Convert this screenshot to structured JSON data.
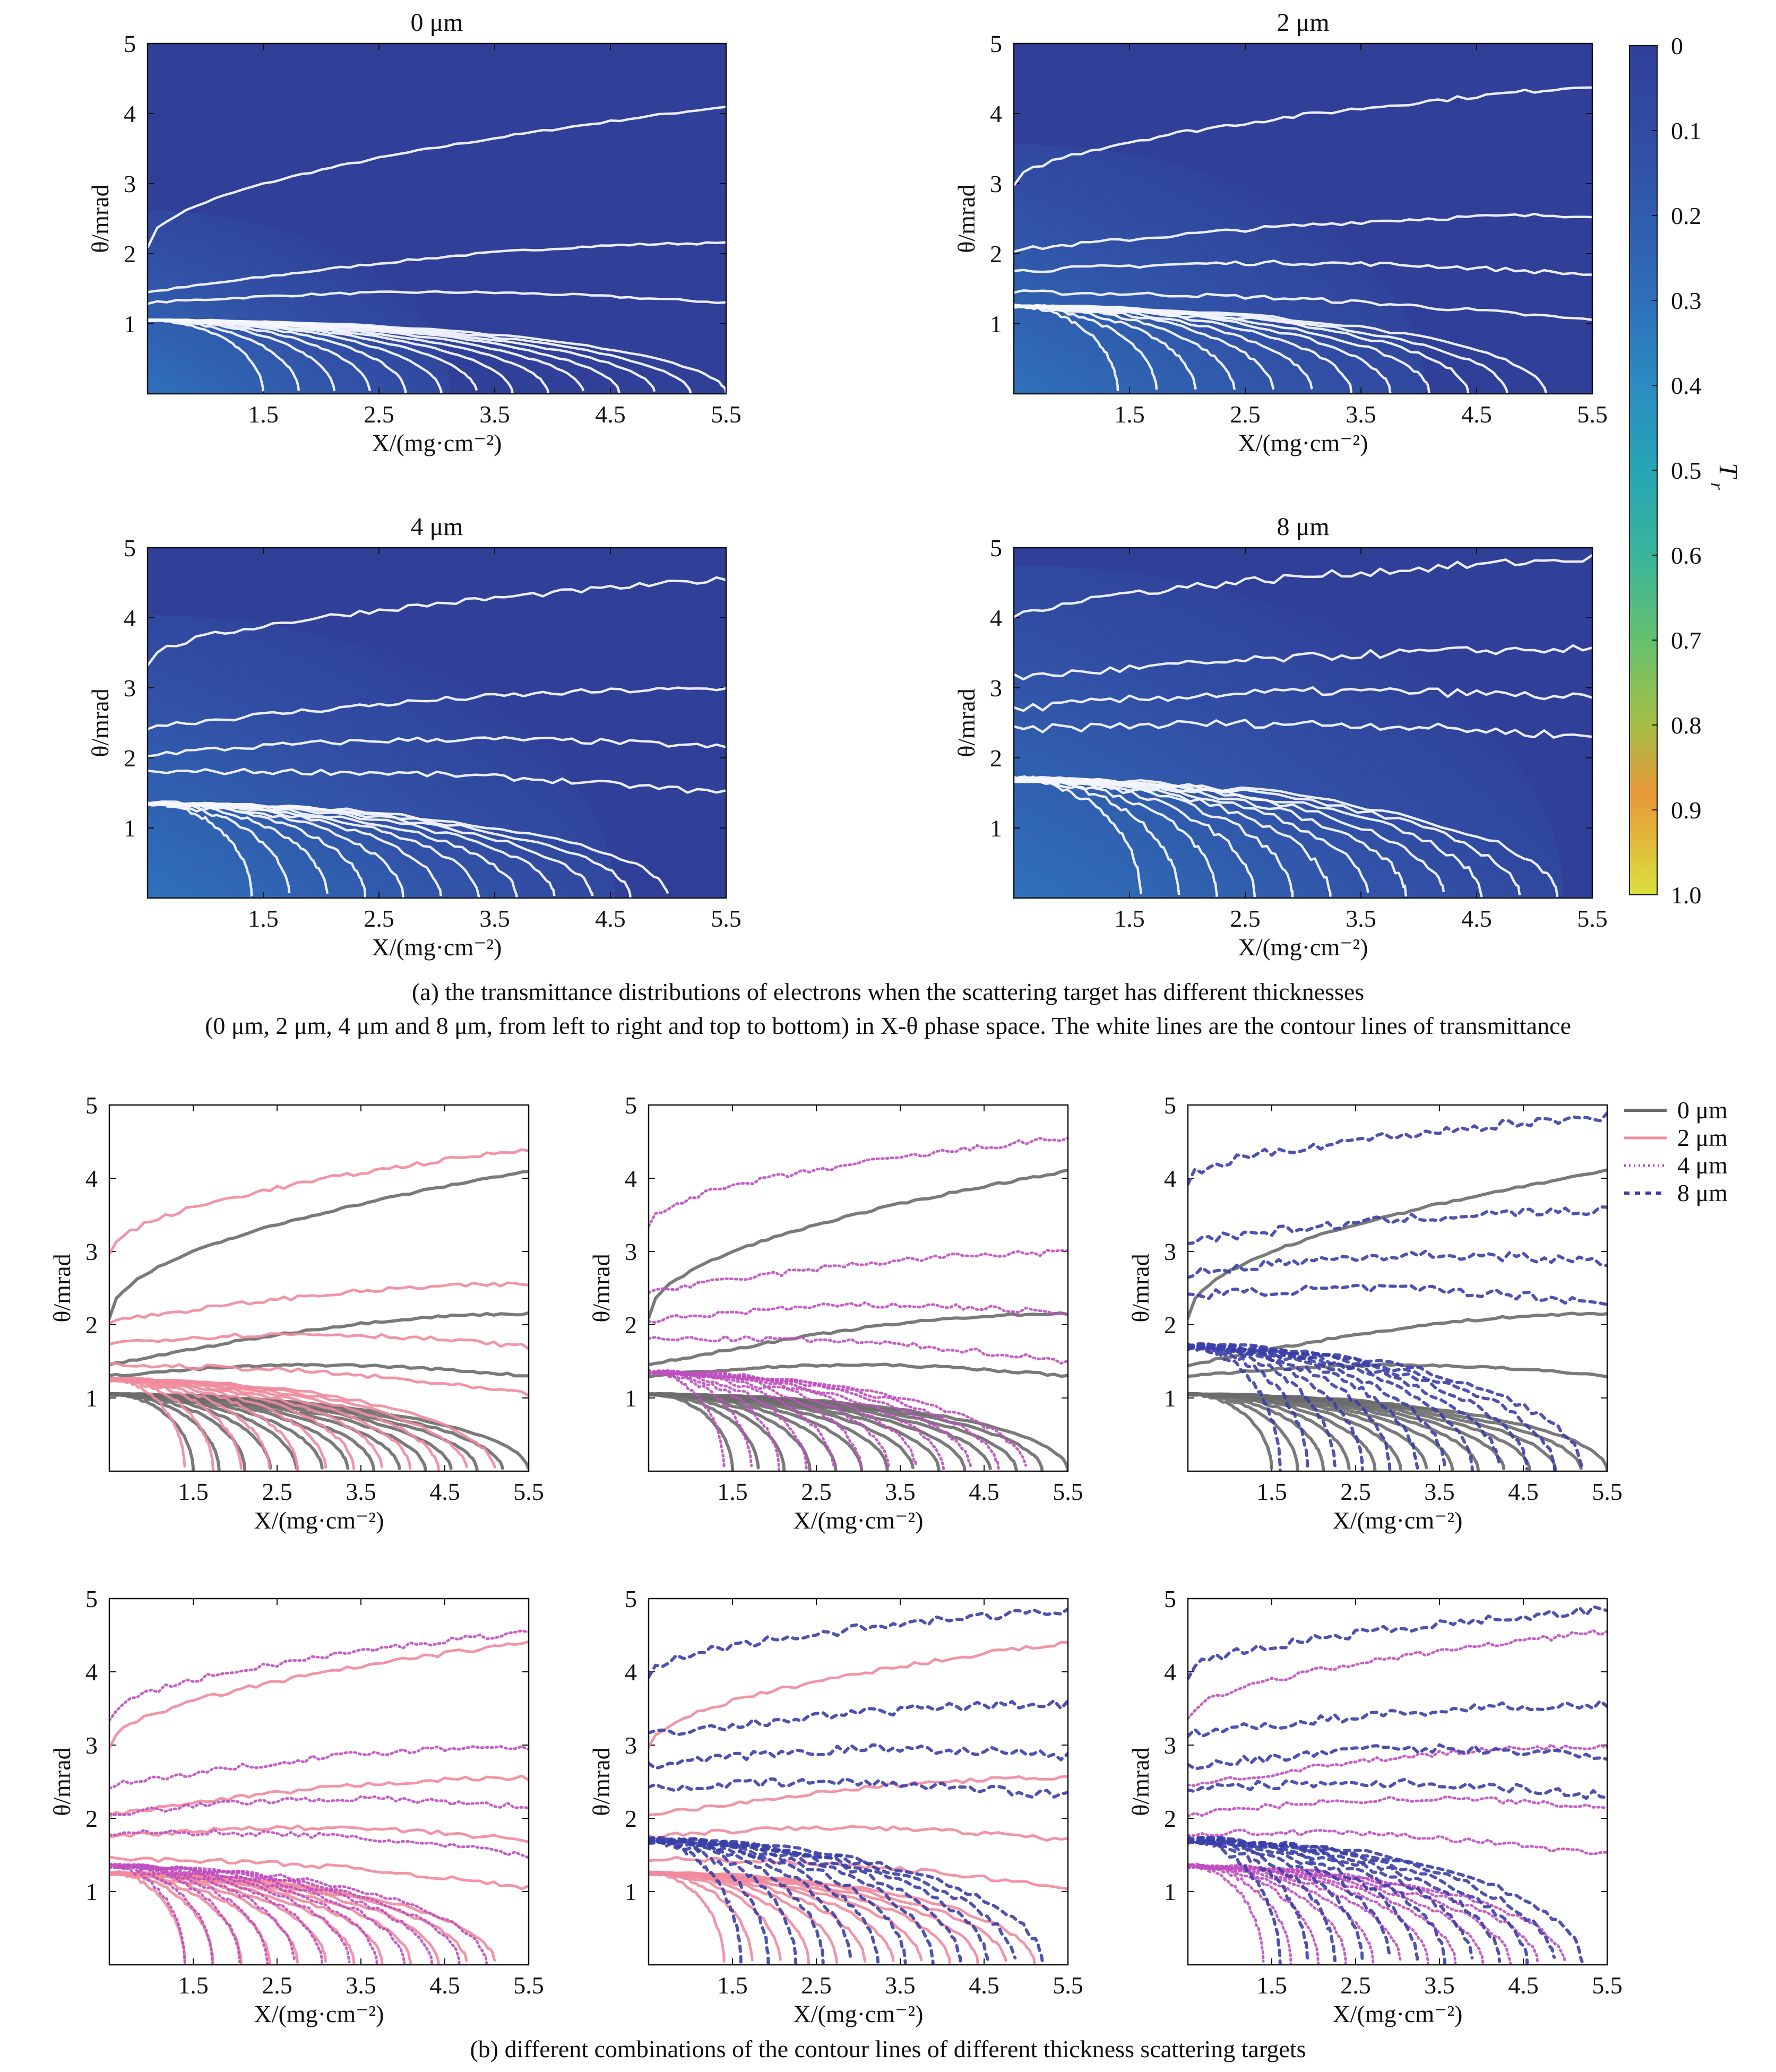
{
  "figure": {
    "caption_a_line1": "(a) the transmittance distributions of electrons when the scattering target has different thicknesses",
    "caption_a_line2": "(0 μm, 2 μm, 4 μm and 8 μm, from left to right and top to bottom) in X-θ phase space. The white lines are the contour lines of transmittance",
    "caption_b": "(b) different combinations of the contour lines of different thickness scattering targets"
  },
  "axes_text": {
    "xlabel": "X/(mg·cm⁻²)",
    "ylabel": "θ/mrad",
    "xticks": [
      "1.5",
      "2.5",
      "3.5",
      "4.5",
      "5.5"
    ],
    "yticks": [
      "1",
      "2",
      "3",
      "4",
      "5"
    ]
  },
  "colorbar": {
    "label": "Tr",
    "ticks": [
      "0",
      "0.1",
      "0.2",
      "0.3",
      "0.4",
      "0.5",
      "0.6",
      "0.7",
      "0.8",
      "0.9",
      "1.0"
    ],
    "colors": [
      "#303f97",
      "#3153a8",
      "#2f6fb9",
      "#2a8cc0",
      "#27a5b5",
      "#39b59b",
      "#66c06f",
      "#a5bf45",
      "#d3a43a",
      "#e8983a",
      "#d9e03c"
    ]
  },
  "series_colors": {
    "0 μm": "#6b6b6b",
    "2 μm": "#f08a9c",
    "4 μm": "#c04fc0",
    "8 μm": "#3b3fa8"
  },
  "chart_data": [
    {
      "type": "heatmap",
      "title": "0 μm",
      "xlabel": "X/(mg·cm⁻²)",
      "ylabel": "θ/mrad",
      "xlim": [
        0.5,
        5.5
      ],
      "ylim": [
        0,
        5
      ],
      "contour_levels": [
        0.05,
        0.15,
        0.2,
        0.25,
        0.3,
        0.35,
        0.4,
        0.45,
        0.5,
        0.55,
        0.6,
        0.65,
        0.7,
        0.75,
        0.8,
        0.85,
        0.9
      ],
      "contours_theta_at_x": {
        "x": [
          0.5,
          1.5,
          2.5,
          3.5,
          4.5,
          5.5
        ],
        "levels": [
          [
            2.1,
            2.7,
            3.1,
            3.5,
            3.8,
            4.1
          ],
          [
            1.45,
            1.75,
            1.95,
            2.05,
            2.12,
            2.15
          ],
          [
            1.3,
            1.45,
            1.45,
            1.42,
            1.38,
            1.3
          ]
        ]
      }
    },
    {
      "type": "heatmap",
      "title": "2 μm",
      "xlabel": "X/(mg·cm⁻²)",
      "ylabel": "θ/mrad",
      "xlim": [
        0.5,
        5.5
      ],
      "ylim": [
        0,
        5
      ],
      "contours_theta_at_x": {
        "x": [
          0.5,
          1.5,
          2.5,
          3.5,
          4.5,
          5.5
        ],
        "levels": [
          [
            2.95,
            3.35,
            3.7,
            3.95,
            4.2,
            4.4
          ],
          [
            2.05,
            2.25,
            2.38,
            2.45,
            2.52,
            2.55
          ],
          [
            1.75,
            1.85,
            1.85,
            1.82,
            1.78,
            1.7
          ]
        ]
      }
    },
    {
      "type": "heatmap",
      "title": "4 μm",
      "xlabel": "X/(mg·cm⁻²)",
      "ylabel": "θ/mrad",
      "xlim": [
        0.5,
        5.5
      ],
      "ylim": [
        0,
        5
      ],
      "contours_theta_at_x": {
        "x": [
          0.5,
          1.5,
          2.5,
          3.5,
          4.5,
          5.5
        ],
        "levels": [
          [
            3.35,
            3.7,
            3.95,
            4.15,
            4.35,
            4.55
          ],
          [
            2.45,
            2.65,
            2.75,
            2.85,
            2.92,
            2.98
          ],
          [
            2.05,
            2.15,
            2.18,
            2.18,
            2.17,
            2.15
          ]
        ]
      }
    },
    {
      "type": "heatmap",
      "title": "8 μm",
      "xlabel": "X/(mg·cm⁻²)",
      "ylabel": "θ/mrad",
      "xlim": [
        0.5,
        5.5
      ],
      "ylim": [
        0,
        5
      ],
      "contours_theta_at_x": {
        "x": [
          0.5,
          1.5,
          2.5,
          3.5,
          4.5,
          5.5
        ],
        "levels": [
          [
            3.95,
            4.25,
            4.45,
            4.6,
            4.75,
            4.85
          ],
          [
            3.15,
            3.3,
            3.4,
            3.45,
            3.52,
            3.55
          ],
          [
            2.7,
            2.8,
            2.82,
            2.83,
            2.83,
            2.85
          ]
        ]
      }
    },
    {
      "type": "line",
      "title": "",
      "series": [
        {
          "name": "0 μm"
        },
        {
          "name": "2 μm"
        }
      ],
      "xlim": [
        0.5,
        5.5
      ],
      "ylim": [
        0,
        5
      ]
    },
    {
      "type": "line",
      "title": "",
      "series": [
        {
          "name": "0 μm"
        },
        {
          "name": "4 μm"
        }
      ],
      "xlim": [
        0.5,
        5.5
      ],
      "ylim": [
        0,
        5
      ]
    },
    {
      "type": "line",
      "title": "",
      "series": [
        {
          "name": "0 μm"
        },
        {
          "name": "8 μm"
        }
      ],
      "xlim": [
        0.5,
        5.5
      ],
      "ylim": [
        0,
        5
      ],
      "legend": {
        "entries": [
          "0 μm",
          "2 μm",
          "4 μm",
          "8 μm"
        ],
        "placement": "outside-right"
      }
    },
    {
      "type": "line",
      "title": "",
      "series": [
        {
          "name": "2 μm"
        },
        {
          "name": "4 μm"
        }
      ],
      "xlim": [
        0.5,
        5.5
      ],
      "ylim": [
        0,
        5
      ]
    },
    {
      "type": "line",
      "title": "",
      "series": [
        {
          "name": "2 μm"
        },
        {
          "name": "8 μm"
        }
      ],
      "xlim": [
        0.5,
        5.5
      ],
      "ylim": [
        0,
        5
      ]
    },
    {
      "type": "line",
      "title": "",
      "series": [
        {
          "name": "4 μm"
        },
        {
          "name": "8 μm"
        }
      ],
      "xlim": [
        0.5,
        5.5
      ],
      "ylim": [
        0,
        5
      ]
    }
  ]
}
